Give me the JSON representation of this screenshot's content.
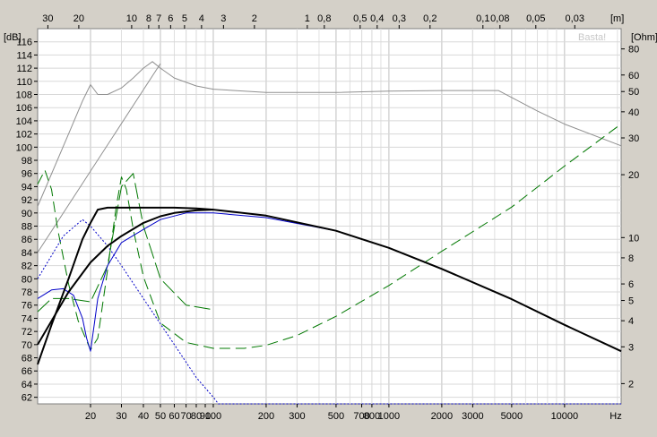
{
  "chart_data": {
    "type": "line",
    "title": "",
    "xlabel": "Hz",
    "ylabel": "[dB]",
    "y2label": "[Ohm]",
    "top_axis_label": "[m]",
    "watermark": "Basta!",
    "xscale": "log",
    "y2scale": "log",
    "xlim": [
      10,
      21000
    ],
    "ylim": [
      61,
      118
    ],
    "y2lim": [
      1.6,
      100
    ],
    "grid": true,
    "background": "#ffffff",
    "frame_background": "#d4d0c8",
    "x_tick_labels": [
      "20",
      "30",
      "40",
      "50",
      "60",
      "70",
      "80",
      "90",
      "100",
      "200",
      "300",
      "500",
      "700",
      "800",
      "1000",
      "2000",
      "3000",
      "5000",
      "10000",
      "Hz"
    ],
    "x_ticks": [
      20,
      30,
      40,
      50,
      60,
      70,
      80,
      90,
      100,
      200,
      300,
      500,
      700,
      800,
      1000,
      2000,
      3000,
      5000,
      10000
    ],
    "x_minor_grid": [
      30,
      40,
      60,
      70,
      80,
      90,
      300,
      400,
      600,
      700,
      800,
      900,
      3000,
      4000,
      6000,
      7000,
      8000,
      9000,
      20000
    ],
    "y_ticks": [
      62,
      64,
      66,
      68,
      70,
      72,
      74,
      76,
      78,
      80,
      82,
      84,
      86,
      88,
      90,
      92,
      94,
      96,
      98,
      100,
      102,
      104,
      106,
      108,
      110,
      112,
      114,
      116
    ],
    "y2_ticks": [
      2,
      3,
      4,
      5,
      6,
      8,
      10,
      20,
      30,
      40,
      50,
      60,
      80
    ],
    "top_ticks": [
      "30",
      "20",
      "10",
      "8",
      "7",
      "6",
      "5",
      "4",
      "3",
      "2",
      "1",
      "0,8",
      "0,5",
      "0,4",
      "0,3",
      "0,2",
      "0,1",
      "0,08",
      "0,05",
      "0,03"
    ],
    "top_ticks_m": [
      30,
      20,
      10,
      8,
      7,
      6,
      5,
      4,
      3,
      2,
      1,
      0.8,
      0.5,
      0.4,
      0.3,
      0.2,
      0.1,
      0.08,
      0.05,
      0.03
    ],
    "series": [
      {
        "role": "max-SPL / limit curve (gray)",
        "color": "#909090",
        "dash": "",
        "width": 1,
        "axis": "y",
        "x": [
          10,
          15,
          18,
          20,
          22,
          25,
          30,
          35,
          40,
          45,
          50,
          60,
          80,
          100,
          200,
          500,
          1000,
          2000,
          4200,
          7000,
          10000,
          21000
        ],
        "y": [
          91,
          102,
          107,
          109.5,
          108,
          108,
          109,
          110.5,
          112,
          113,
          112,
          110.5,
          109.3,
          108.8,
          108.3,
          108.3,
          108.5,
          108.6,
          108.6,
          105.5,
          103.5,
          100.2
        ]
      },
      {
        "role": "gray ramp",
        "color": "#909090",
        "dash": "",
        "width": 1,
        "axis": "y",
        "x": [
          10,
          50
        ],
        "y": [
          84,
          112.7
        ]
      },
      {
        "role": "impedance (green dashed)",
        "color": "#007800",
        "dash": "12,6",
        "width": 1,
        "axis": "y2",
        "x": [
          10,
          11,
          12,
          13,
          15,
          17,
          20,
          22,
          25,
          28,
          30,
          32,
          35,
          40,
          50,
          70,
          100,
          150,
          200,
          300,
          500,
          1000,
          2000,
          5000,
          10000,
          21000
        ],
        "y": [
          18,
          21,
          17,
          11,
          6,
          4,
          2.9,
          3.3,
          7,
          14,
          19.5,
          17,
          11,
          6.5,
          3.9,
          3.15,
          2.95,
          2.95,
          3.05,
          3.4,
          4.2,
          5.9,
          8.6,
          14,
          22,
          35
        ]
      },
      {
        "role": "phase (green long-dash)",
        "color": "#007800",
        "dash": "18,5",
        "width": 1,
        "axis": "y",
        "x": [
          10,
          12,
          15,
          20,
          25,
          30,
          35,
          40,
          50,
          70,
          100
        ],
        "y": [
          75,
          77,
          77,
          76.5,
          82,
          94,
          96,
          88,
          80,
          76,
          75.3
        ]
      },
      {
        "role": "SPL (blue)",
        "color": "#0000c8",
        "dash": "",
        "width": 1,
        "axis": "y",
        "x": [
          10,
          12,
          14,
          16,
          18,
          19,
          20,
          21,
          22,
          25,
          30,
          40,
          50,
          70,
          100,
          200,
          500,
          1000,
          2000,
          5000,
          10000,
          21000
        ],
        "y": [
          77,
          78.3,
          78.5,
          77.5,
          74,
          71,
          69,
          73,
          77,
          82,
          85.5,
          87.5,
          89,
          90,
          90,
          89.3,
          87.3,
          84.7,
          81.5,
          76.9,
          73,
          69
        ]
      },
      {
        "role": "port output (blue dotted)",
        "color": "#0000c8",
        "dash": "2,2",
        "width": 1,
        "axis": "y",
        "x": [
          10,
          14,
          18,
          20,
          25,
          30,
          40,
          60,
          80,
          100,
          107,
          21000
        ],
        "y": [
          80,
          86.5,
          89,
          88,
          85,
          82,
          77,
          70,
          65,
          62,
          61,
          61
        ]
      },
      {
        "role": "SPL total (black, upper)",
        "color": "#000000",
        "dash": "",
        "width": 2,
        "axis": "y",
        "x": [
          10,
          12,
          15,
          18,
          20,
          22,
          25,
          30,
          40,
          50,
          60,
          80,
          100,
          200,
          500,
          1000,
          2000,
          5000,
          10000,
          21000
        ],
        "y": [
          67,
          73,
          80,
          86,
          88.5,
          90.5,
          90.8,
          90.8,
          90.8,
          90.8,
          90.8,
          90.7,
          90.5,
          89.6,
          87.3,
          84.7,
          81.5,
          76.9,
          73,
          69
        ]
      },
      {
        "role": "SPL (black, lower)",
        "color": "#000000",
        "dash": "",
        "width": 2,
        "axis": "y",
        "x": [
          10,
          15,
          20,
          25,
          30,
          40,
          50,
          60,
          80,
          100
        ],
        "y": [
          70,
          78,
          82.5,
          85,
          86.5,
          88.5,
          89.5,
          90,
          90.4,
          90.5
        ]
      }
    ]
  }
}
